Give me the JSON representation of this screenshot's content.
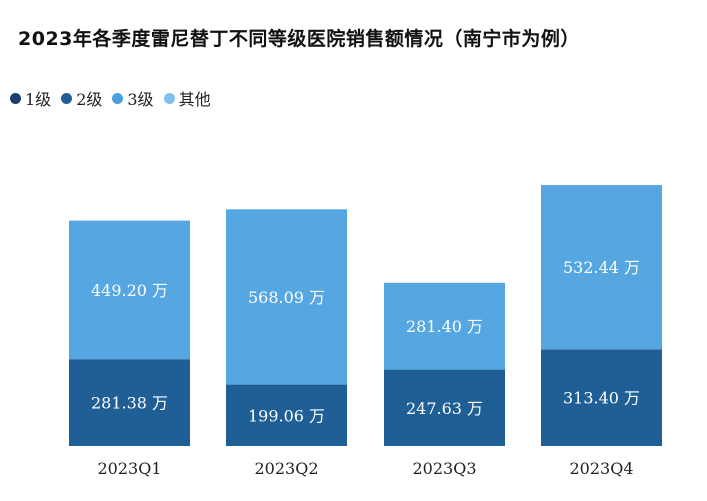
{
  "title": "2023年各季度雷尼替丁不同等级医院销售额情况（南宁市为例）",
  "legend": [
    {
      "label": "1级",
      "color": "#1a3f6b"
    },
    {
      "label": "2级",
      "color": "#1f5f96"
    },
    {
      "label": "3级",
      "color": "#4a9fe0"
    },
    {
      "label": "其他",
      "color": "#7fc0ee"
    }
  ],
  "chart_data": {
    "type": "bar",
    "stacked": true,
    "categories": [
      "2023Q1",
      "2023Q2",
      "2023Q3",
      "2023Q4"
    ],
    "unit": "万",
    "series": [
      {
        "name": "2级",
        "values": [
          281.38,
          199.06,
          247.63,
          313.4
        ],
        "labels": [
          "281.38 万",
          "199.06 万",
          "247.63 万",
          "313.40 万"
        ]
      },
      {
        "name": "3级",
        "values": [
          449.2,
          568.09,
          281.4,
          532.44
        ],
        "labels": [
          "449.20 万",
          "568.09 万",
          "281.40 万",
          "532.44 万"
        ]
      }
    ],
    "colors": {
      "2级": "#1f5f96",
      "3级": "#55a6e1"
    },
    "ylim": [
      0,
      880
    ],
    "grid": false,
    "legend_position": "top-left"
  }
}
